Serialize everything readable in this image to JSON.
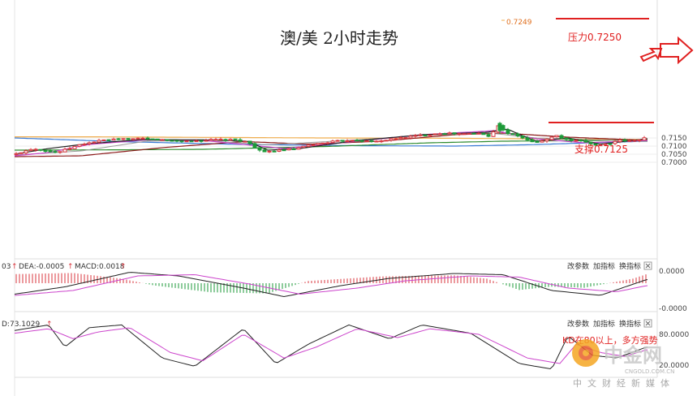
{
  "chart_data": {
    "type": "candlestick",
    "title": "澳/美 2小时走势",
    "price_axis": {
      "ticks": [
        0.715,
        0.71,
        0.705,
        0.7
      ]
    },
    "annotations": {
      "peak_label": "0.7249",
      "resistance_label": "压力0.7250",
      "support_label": "支撑0.7125"
    },
    "macd_panel": {
      "header": {
        "dif": "03",
        "dea": "DEA:-0.0005",
        "macd": "MACD:0.0018"
      },
      "ticks": [
        "0.0000",
        "-0.0000"
      ],
      "buttons": [
        "改参数",
        "加指标",
        "换指标"
      ]
    },
    "kd_panel": {
      "header": "D:73.1029",
      "ticks": [
        "80.0000",
        "20.0000"
      ],
      "buttons": [
        "改参数",
        "加指标",
        "换指标"
      ],
      "annotation": "KD在80以上，多方强势"
    },
    "watermark": {
      "brand": "中金网",
      "domain": "CNGOLD.COM.CN",
      "tagline": "中文财经新媒体"
    },
    "colors": {
      "up": "#d9363e",
      "down": "#1c9a38",
      "orange": "#f0ad4e",
      "blue": "#3a7bd5",
      "green": "#2e8b2e",
      "darkred": "#8b1a1a",
      "pink": "#cc44cc",
      "gray": "#9a9a9a",
      "black": "#222222"
    }
  }
}
